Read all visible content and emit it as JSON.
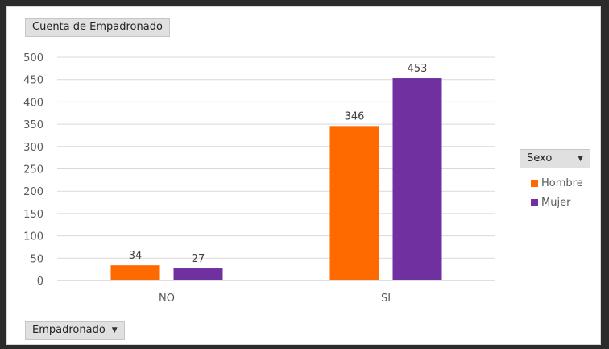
{
  "value_field_button": {
    "label": "Cuenta de Empadronado"
  },
  "axis_field_button": {
    "label": "Empadronado"
  },
  "legend": {
    "field_label": "Sexo"
  },
  "colors": {
    "Hombre": "#ff6a00",
    "Mujer": "#7030a0"
  },
  "chart_data": {
    "type": "bar",
    "categories": [
      "NO",
      "SI"
    ],
    "series": [
      {
        "name": "Hombre",
        "values": [
          34,
          346
        ]
      },
      {
        "name": "Mujer",
        "values": [
          27,
          453
        ]
      }
    ],
    "y_ticks": [
      0,
      50,
      100,
      150,
      200,
      250,
      300,
      350,
      400,
      450,
      500
    ],
    "ylim": [
      0,
      500
    ],
    "grid": true,
    "legend_position": "right",
    "data_labels": true
  }
}
